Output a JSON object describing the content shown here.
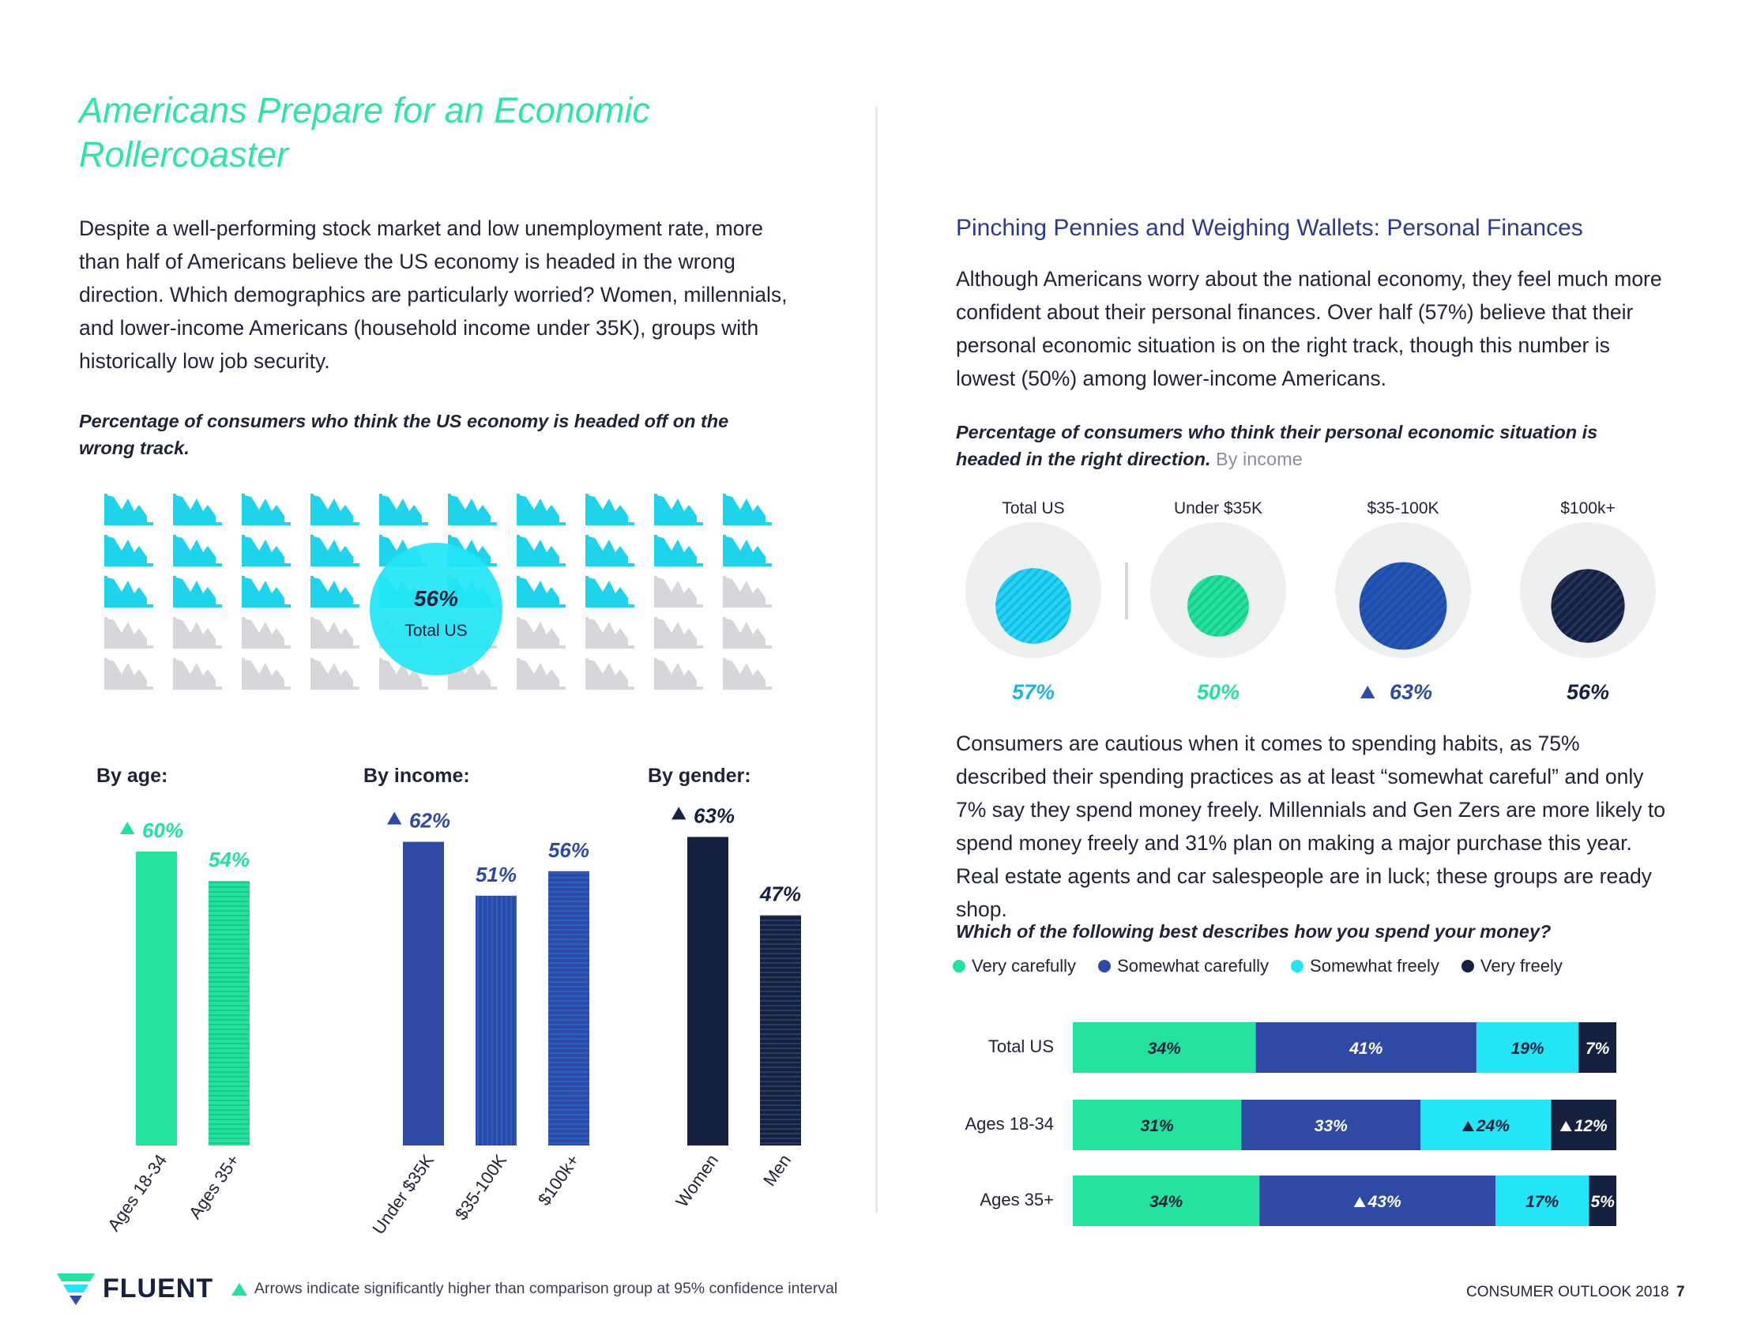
{
  "page": {
    "title": "Americans Prepare for an Economic Rollercoaster",
    "intro": "Despite a well-performing stock market and low unemployment rate, more than half of Americans believe the US economy is headed in the wrong direction. Which demographics are particularly worried? Women, millennials, and lower-income Americans (household income under 35K), groups with historically low job security.",
    "chart1_caption": "Percentage of consumers who think the US economy is headed off on the wrong track.",
    "right_section_title": "Pinching Pennies and Weighing Wallets: Personal Finances",
    "right_intro": "Although Americans worry about the national economy, they feel much more confident about their personal finances. Over half (57%) believe that their personal economic situation is on the right track, though this number is lowest (50%) among lower-income Americans.",
    "chart2_caption": "Percentage of consumers who think their personal economic situation is headed in the right direction.",
    "chart2_caption_suffix": "By income",
    "right_body2": "Consumers are cautious when it comes to spending habits, as 75% described their spending practices as at least “somewhat careful” and only 7% say they spend money freely. Millennials and Gen Zers are more likely to spend money freely and 31% plan on making a major purchase this year. Real estate agents and car salespeople are in luck; these groups are ready shop.",
    "chart3_caption": "Which of the following best describes how you spend your money?",
    "footer_note": "Arrows indicate significantly higher than comparison group at 95% confidence interval",
    "brand": "FLUENT",
    "footer_right": "CONSUMER OUTLOOK 2018",
    "page_number": "7"
  },
  "colors": {
    "green": "#22e29e",
    "blue": "#2e4aa5",
    "blue_mid": "#2356b8",
    "navy": "#15213f",
    "cyan": "#22e6f5",
    "gray": "#d5d7db",
    "circle_bg": "#eeeff0"
  },
  "chart_data": [
    {
      "type": "pictograph",
      "title": "Percentage of consumers who think the US economy is headed off on the wrong track.",
      "value": 56,
      "value_label": "56%",
      "sublabel": "Total US",
      "total_icons": 50,
      "icon": "declining-chart-icon"
    },
    {
      "type": "bar",
      "groups": [
        {
          "title": "By age:",
          "categories": [
            "Ages 18-34",
            "Ages 35+"
          ],
          "values": [
            60,
            54
          ],
          "labels": [
            "60%",
            "54%"
          ],
          "arrows": [
            true,
            false
          ],
          "color": "green"
        },
        {
          "title": "By income:",
          "categories": [
            "Under $35K",
            "$35-100K",
            "$100k+"
          ],
          "values": [
            62,
            51,
            56
          ],
          "labels": [
            "62%",
            "51%",
            "56%"
          ],
          "arrows": [
            true,
            false,
            false
          ],
          "color": "blue"
        },
        {
          "title": "By gender:",
          "categories": [
            "Women",
            "Men"
          ],
          "values": [
            63,
            47
          ],
          "labels": [
            "63%",
            "47%"
          ],
          "arrows": [
            true,
            false
          ],
          "color": "navy"
        }
      ],
      "ylim": [
        0,
        100
      ]
    },
    {
      "type": "bubble",
      "title": "Percentage of consumers who think their personal economic situation is headed in the right direction. By income",
      "categories": [
        "Total US",
        "Under $35K",
        "$35-100K",
        "$100k+"
      ],
      "values": [
        57,
        50,
        63,
        56
      ],
      "labels": [
        "57%",
        "50%",
        "63%",
        "56%"
      ],
      "arrows": [
        false,
        false,
        true,
        false
      ],
      "colors": [
        "cyan",
        "green",
        "blue_mid",
        "navy"
      ]
    },
    {
      "type": "stacked-bar",
      "title": "Which of the following best describes how you spend your money?",
      "legend": [
        "Very carefully",
        "Somewhat carefully",
        "Somewhat freely",
        "Very freely"
      ],
      "legend_colors": [
        "green",
        "blue",
        "cyan",
        "navy"
      ],
      "categories": [
        "Total US",
        "Ages 18-34",
        "Ages 35+"
      ],
      "series": [
        {
          "name": "Very carefully",
          "values": [
            34,
            31,
            34
          ],
          "labels": [
            "34%",
            "31%",
            "34%"
          ],
          "arrows": [
            false,
            false,
            false
          ]
        },
        {
          "name": "Somewhat carefully",
          "values": [
            41,
            33,
            43
          ],
          "labels": [
            "41%",
            "33%",
            "43%"
          ],
          "arrows": [
            false,
            false,
            true
          ]
        },
        {
          "name": "Somewhat freely",
          "values": [
            19,
            24,
            17
          ],
          "labels": [
            "19%",
            "24%",
            "17%"
          ],
          "arrows": [
            false,
            true,
            false
          ]
        },
        {
          "name": "Very freely",
          "values": [
            7,
            12,
            5
          ],
          "labels": [
            "7%",
            "12%",
            "5%"
          ],
          "arrows": [
            false,
            true,
            false
          ]
        }
      ]
    }
  ]
}
